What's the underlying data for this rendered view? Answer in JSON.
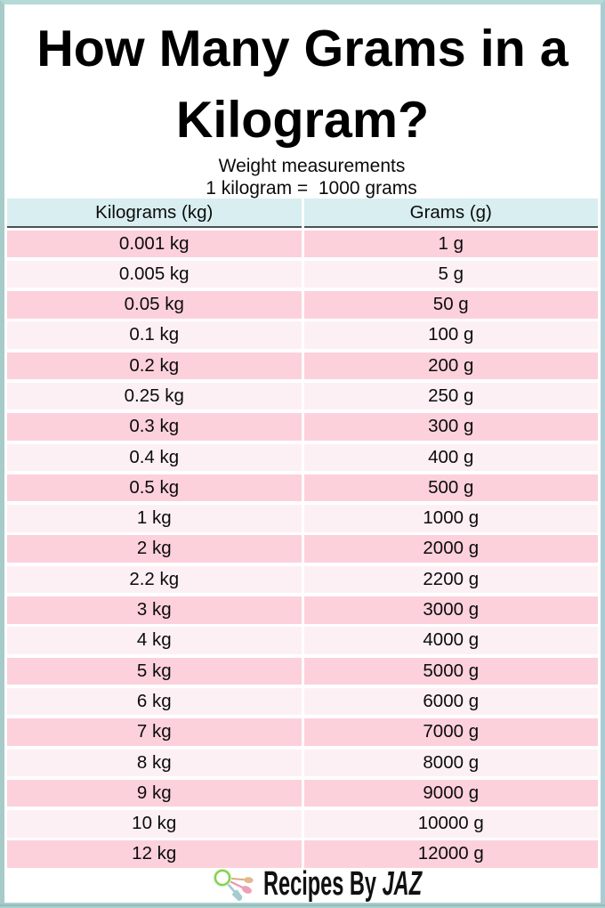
{
  "page": {
    "title_line1": "How Many Grams in a",
    "title_line2": "Kilogram?",
    "subtitle": "Weight measurements",
    "conversion_note": "1 kilogram =  1000 grams",
    "footer": {
      "brand_regular": "Recipes By ",
      "brand_italic": "JAZ",
      "logo": "measuring-spoons-icon"
    },
    "colors": {
      "frame": "#b9dcd8",
      "header_bg": "#d8eef0",
      "row_odd_bg": "#fcd1dc",
      "row_even_bg": "#fdf0f4",
      "header_rule": "#4c5153",
      "logo_ring_green": "#7ed348",
      "spoon_tan": "#e2b48c",
      "spoon_pink": "#ef9db5",
      "spoon_teal": "#a3ccd1"
    }
  },
  "chart_data": {
    "type": "table",
    "title": "How Many Grams in a Kilogram?",
    "subtitle": "Weight measurements",
    "note": "1 kilogram = 1000 grams",
    "columns": [
      "Kilograms (kg)",
      "Grams (g)"
    ],
    "rows": [
      [
        "0.001 kg",
        "1 g"
      ],
      [
        "0.005 kg",
        "5 g"
      ],
      [
        "0.05 kg",
        "50 g"
      ],
      [
        "0.1 kg",
        "100 g"
      ],
      [
        "0.2 kg",
        "200 g"
      ],
      [
        "0.25 kg",
        "250 g"
      ],
      [
        "0.3 kg",
        "300 g"
      ],
      [
        "0.4 kg",
        "400 g"
      ],
      [
        "0.5 kg",
        "500 g"
      ],
      [
        "1 kg",
        "1000 g"
      ],
      [
        "2 kg",
        "2000 g"
      ],
      [
        "2.2 kg",
        "2200 g"
      ],
      [
        "3 kg",
        "3000 g"
      ],
      [
        "4 kg",
        "4000 g"
      ],
      [
        "5 kg",
        "5000 g"
      ],
      [
        "6 kg",
        "6000 g"
      ],
      [
        "7 kg",
        "7000 g"
      ],
      [
        "8 kg",
        "8000 g"
      ],
      [
        "9 kg",
        "9000 g"
      ],
      [
        "10 kg",
        "10000 g"
      ],
      [
        "12 kg",
        "12000 g"
      ]
    ]
  }
}
